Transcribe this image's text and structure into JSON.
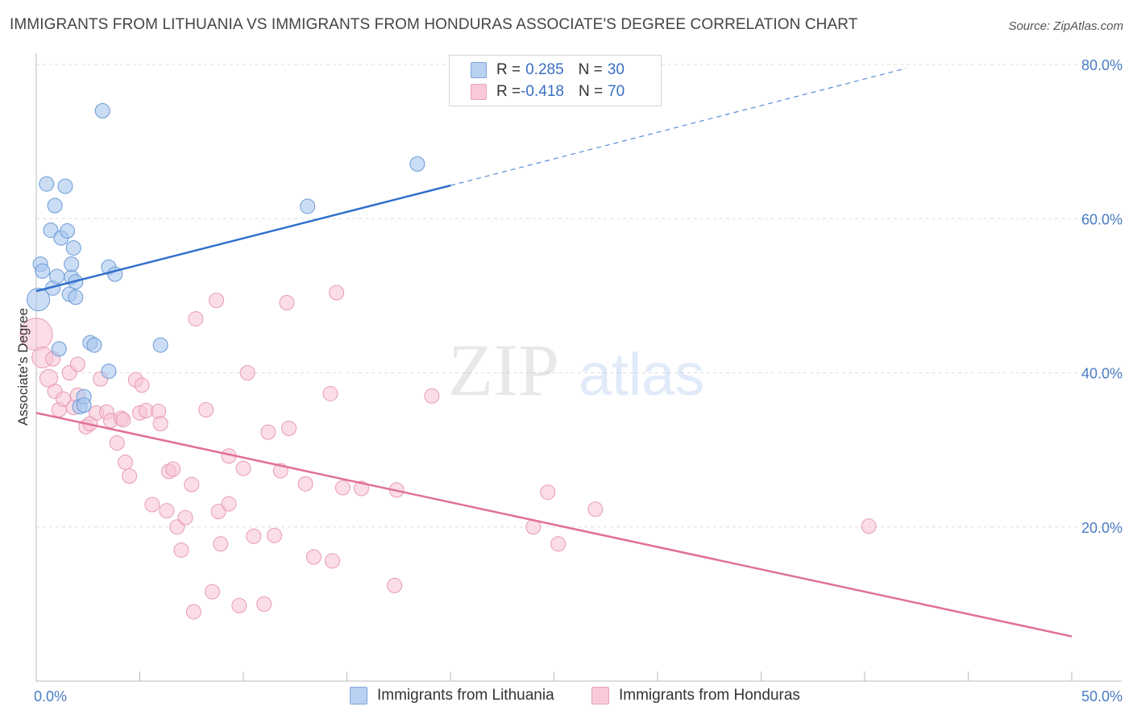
{
  "header": {
    "title": "IMMIGRANTS FROM LITHUANIA VS IMMIGRANTS FROM HONDURAS ASSOCIATE'S DEGREE CORRELATION CHART",
    "source": "Source: ZipAtlas.com"
  },
  "watermark": {
    "zip": "ZIP",
    "atlas": "atlas"
  },
  "legend": {
    "series1": {
      "r_label": "R = ",
      "r_value": "0.285",
      "n_label": "N = ",
      "n_value": "30"
    },
    "series2": {
      "r_label": "R = ",
      "r_value": "-0.418",
      "n_label": "N = ",
      "n_value": "70"
    }
  },
  "colors": {
    "lithuania_fill": "#a9c7ee",
    "lithuania_stroke": "#6a9ad6",
    "lithuania_line": "#2f6fcc",
    "honduras_fill": "#f7c1d1",
    "honduras_stroke": "#e79ab5",
    "honduras_line": "#e0709a",
    "grid": "#dddddd",
    "tick_text": "#4a7cc4"
  },
  "chart_data": {
    "type": "scatter",
    "xlabel": "",
    "ylabel": "Associate's Degree",
    "xlim": [
      0,
      50
    ],
    "ylim": [
      0,
      80
    ],
    "x_tick_labels": [
      "0.0%",
      "50.0%"
    ],
    "y_ticks": [
      20,
      40,
      60,
      80
    ],
    "y_tick_labels": [
      "20.0%",
      "40.0%",
      "60.0%",
      "80.0%"
    ],
    "grid": true,
    "series": [
      {
        "name": "Immigrants from Lithuania",
        "trend": {
          "x0": 0,
          "y0": 50.6,
          "x1": 20,
          "y1": 64.3,
          "dash_to_x": 42,
          "dash_to_y": 79.5
        },
        "points": [
          [
            0.1,
            49.5,
            14
          ],
          [
            0.2,
            54.1,
            9
          ],
          [
            0.3,
            53.2,
            9
          ],
          [
            0.5,
            64.5,
            9
          ],
          [
            0.7,
            58.5,
            9
          ],
          [
            0.8,
            51.0,
            9
          ],
          [
            0.9,
            61.7,
            9
          ],
          [
            1.0,
            52.5,
            9
          ],
          [
            1.1,
            43.1,
            9
          ],
          [
            1.2,
            57.5,
            9
          ],
          [
            1.4,
            64.2,
            9
          ],
          [
            1.5,
            58.4,
            9
          ],
          [
            1.6,
            50.2,
            9
          ],
          [
            1.7,
            52.4,
            9
          ],
          [
            1.7,
            54.1,
            9
          ],
          [
            1.8,
            56.2,
            9
          ],
          [
            1.9,
            51.8,
            9
          ],
          [
            2.1,
            35.6,
            9
          ],
          [
            2.3,
            36.9,
            9
          ],
          [
            2.6,
            43.9,
            9
          ],
          [
            2.8,
            43.6,
            9
          ],
          [
            3.2,
            74.0,
            9
          ],
          [
            3.5,
            53.7,
            9
          ],
          [
            3.8,
            52.8,
            9
          ],
          [
            3.5,
            40.2,
            9
          ],
          [
            6.0,
            43.6,
            9
          ],
          [
            13.1,
            61.6,
            9
          ],
          [
            18.4,
            67.1,
            9
          ],
          [
            1.9,
            49.8,
            9
          ],
          [
            2.3,
            35.8,
            9
          ]
        ]
      },
      {
        "name": "Immigrants from Honduras",
        "trend": {
          "x0": 0,
          "y0": 34.8,
          "x1": 50,
          "y1": 5.8
        },
        "points": [
          [
            0.0,
            45.0,
            20
          ],
          [
            0.3,
            42.0,
            13
          ],
          [
            0.6,
            39.3,
            11
          ],
          [
            0.8,
            41.8,
            9
          ],
          [
            0.9,
            37.6,
            9
          ],
          [
            1.1,
            35.2,
            9
          ],
          [
            1.3,
            36.6,
            9
          ],
          [
            1.6,
            40.0,
            9
          ],
          [
            1.8,
            35.5,
            9
          ],
          [
            2.0,
            37.1,
            9
          ],
          [
            2.0,
            41.1,
            9
          ],
          [
            2.4,
            33.0,
            9
          ],
          [
            2.6,
            33.4,
            9
          ],
          [
            2.9,
            34.8,
            9
          ],
          [
            3.1,
            39.2,
            9
          ],
          [
            3.4,
            34.9,
            9
          ],
          [
            3.6,
            33.8,
            9
          ],
          [
            3.9,
            30.9,
            9
          ],
          [
            4.1,
            34.1,
            9
          ],
          [
            4.3,
            28.4,
            9
          ],
          [
            4.5,
            26.6,
            9
          ],
          [
            4.8,
            39.1,
            9
          ],
          [
            5.0,
            34.8,
            9
          ],
          [
            5.1,
            38.4,
            9
          ],
          [
            5.3,
            35.1,
            9
          ],
          [
            5.6,
            22.9,
            9
          ],
          [
            5.9,
            35.0,
            9
          ],
          [
            6.0,
            33.4,
            9
          ],
          [
            6.3,
            22.1,
            9
          ],
          [
            6.4,
            27.2,
            9
          ],
          [
            6.6,
            27.5,
            9
          ],
          [
            6.8,
            20.0,
            9
          ],
          [
            7.0,
            17.0,
            9
          ],
          [
            7.2,
            21.2,
            9
          ],
          [
            7.5,
            25.5,
            9
          ],
          [
            7.6,
            9.0,
            9
          ],
          [
            7.7,
            47.0,
            9
          ],
          [
            8.2,
            35.2,
            9
          ],
          [
            8.5,
            11.6,
            9
          ],
          [
            8.7,
            49.4,
            9
          ],
          [
            8.8,
            22.0,
            9
          ],
          [
            8.9,
            17.8,
            9
          ],
          [
            9.3,
            29.2,
            9
          ],
          [
            9.3,
            23.0,
            9
          ],
          [
            9.8,
            9.8,
            9
          ],
          [
            10.0,
            27.6,
            9
          ],
          [
            10.2,
            40.0,
            9
          ],
          [
            10.5,
            18.8,
            9
          ],
          [
            11.0,
            10.0,
            9
          ],
          [
            11.2,
            32.3,
            9
          ],
          [
            11.5,
            18.9,
            9
          ],
          [
            11.8,
            27.3,
            9
          ],
          [
            12.1,
            49.1,
            9
          ],
          [
            12.2,
            32.8,
            9
          ],
          [
            13.0,
            25.6,
            9
          ],
          [
            13.4,
            16.1,
            9
          ],
          [
            14.3,
            15.6,
            9
          ],
          [
            14.5,
            50.4,
            9
          ],
          [
            14.2,
            37.3,
            9
          ],
          [
            14.8,
            25.1,
            9
          ],
          [
            15.7,
            25.0,
            9
          ],
          [
            17.3,
            12.4,
            9
          ],
          [
            17.4,
            24.8,
            9
          ],
          [
            19.1,
            37.0,
            9
          ],
          [
            24.0,
            20.0,
            9
          ],
          [
            24.7,
            24.5,
            9
          ],
          [
            25.2,
            17.8,
            9
          ],
          [
            27.0,
            22.3,
            9
          ],
          [
            40.2,
            20.1,
            9
          ],
          [
            4.2,
            33.9,
            9
          ]
        ]
      }
    ]
  },
  "bottom_legend": {
    "series1": "Immigrants from Lithuania",
    "series2": "Immigrants from Honduras"
  }
}
